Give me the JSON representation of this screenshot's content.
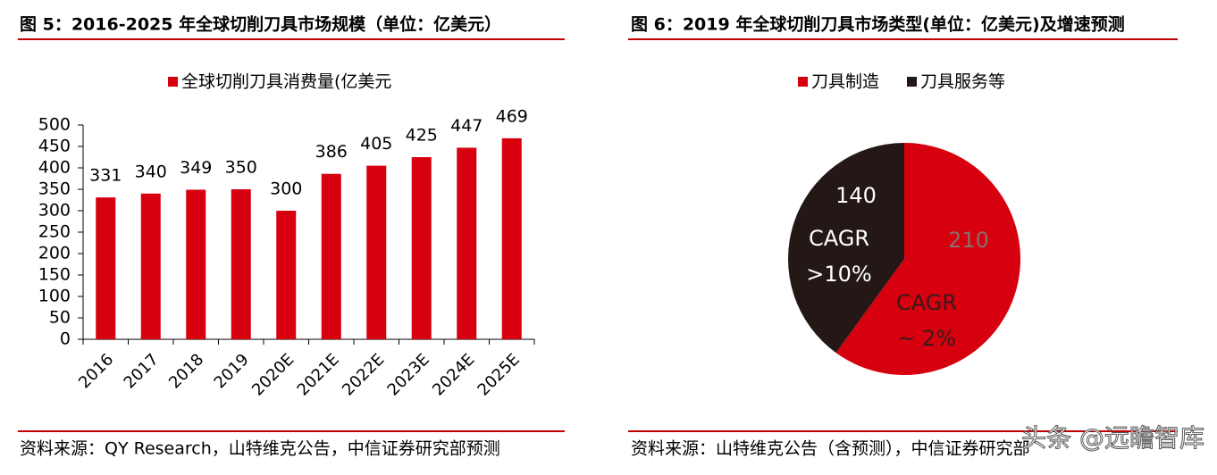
{
  "chart_data": [
    {
      "type": "bar",
      "title": "图 5：2016-2025 年全球切削刀具市场规模（单位：亿美元）",
      "categories": [
        "2016",
        "2017",
        "2018",
        "2019",
        "2020E",
        "2021E",
        "2022E",
        "2023E",
        "2024E",
        "2025E"
      ],
      "series": [
        {
          "name": "全球切削刀具消费量(亿美元",
          "color": "#d7000f",
          "values": [
            331,
            340,
            349,
            350,
            300,
            386,
            405,
            425,
            447,
            469
          ]
        }
      ],
      "ylim": [
        0,
        500
      ],
      "yticks": [
        0,
        50,
        100,
        150,
        200,
        250,
        300,
        350,
        400,
        450,
        500
      ],
      "source": "资料来源：QY Research，山特维克公告，中信证券研究部预测"
    },
    {
      "type": "pie",
      "title": "图 6：2019 年全球切削刀具市场类型(单位：亿美元)及增速预测",
      "categories": [
        "刀具制造",
        "刀具服务等"
      ],
      "values": [
        210,
        140
      ],
      "colors": [
        "#d7000f",
        "#231815"
      ],
      "annotations": [
        [
          "CAGR",
          "~ 2%"
        ],
        [
          "CAGR",
          ">10%"
        ]
      ],
      "source": "资料来源：山特维克公告（含预测），中信证券研究部"
    }
  ],
  "watermark": "头条 @远瞻智库"
}
